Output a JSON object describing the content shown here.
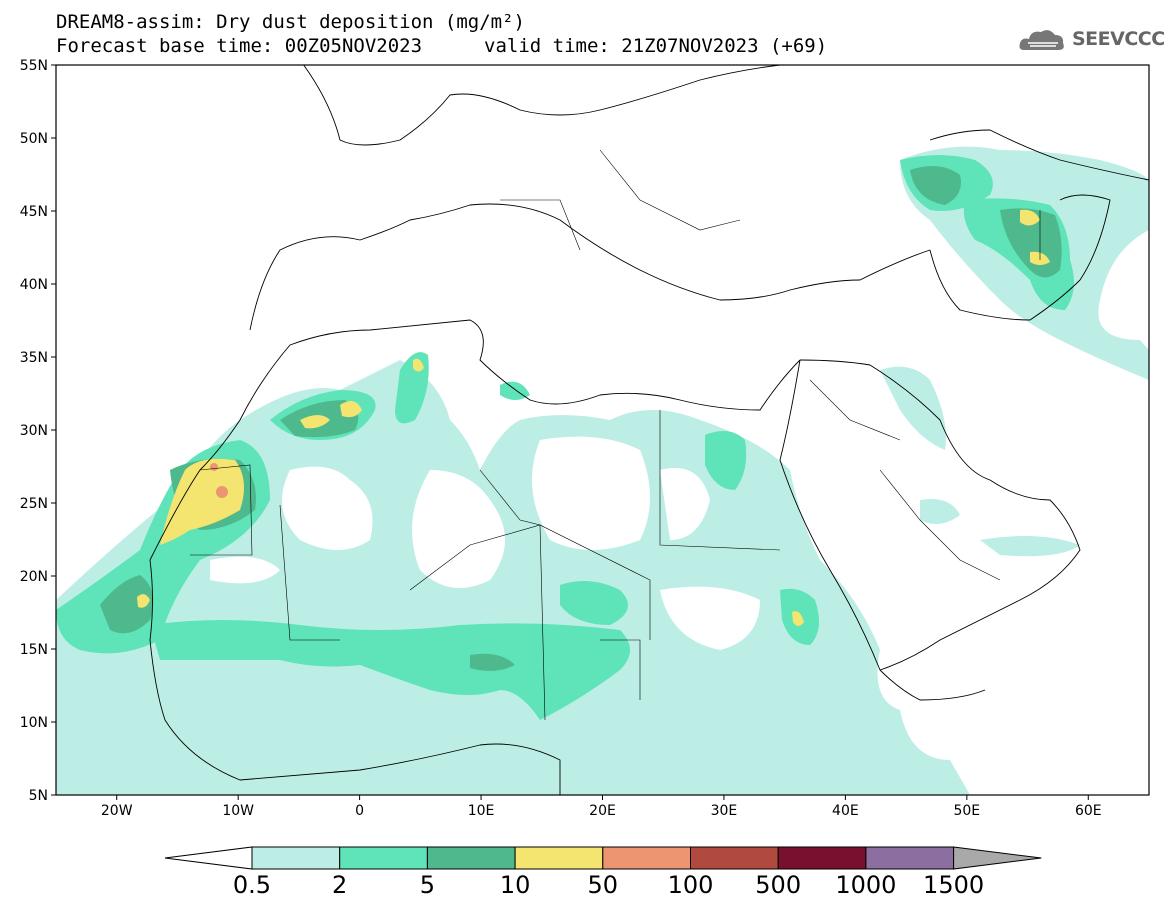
{
  "header": {
    "title": "DREAM8-assim: Dry dust deposition (mg/m²)",
    "base_time": "Forecast base time: 00Z05NOV2023",
    "valid_time": "valid time: 21Z07NOV2023 (+69)"
  },
  "logo": {
    "text": "SEEVCCC",
    "icon": "cloud-icon"
  },
  "map": {
    "lat_labels": [
      "55N",
      "50N",
      "45N",
      "40N",
      "35N",
      "30N",
      "25N",
      "20N",
      "15N",
      "10N",
      "5N"
    ],
    "lon_labels": [
      "20W",
      "10W",
      "0",
      "10E",
      "20E",
      "30E",
      "40E",
      "50E",
      "60E"
    ],
    "lat_range": [
      5,
      55
    ],
    "lon_range": [
      -25,
      65
    ]
  },
  "colorbar": {
    "labels": [
      "0.5",
      "2",
      "5",
      "10",
      "50",
      "100",
      "500",
      "1000",
      "1500"
    ],
    "colors": [
      "#bdeee6",
      "#5fe3b9",
      "#4fb98e",
      "#f3e56f",
      "#ec9570",
      "#b04a3f",
      "#7a1030",
      "#8d6ea0",
      "#a9a9a9"
    ]
  }
}
